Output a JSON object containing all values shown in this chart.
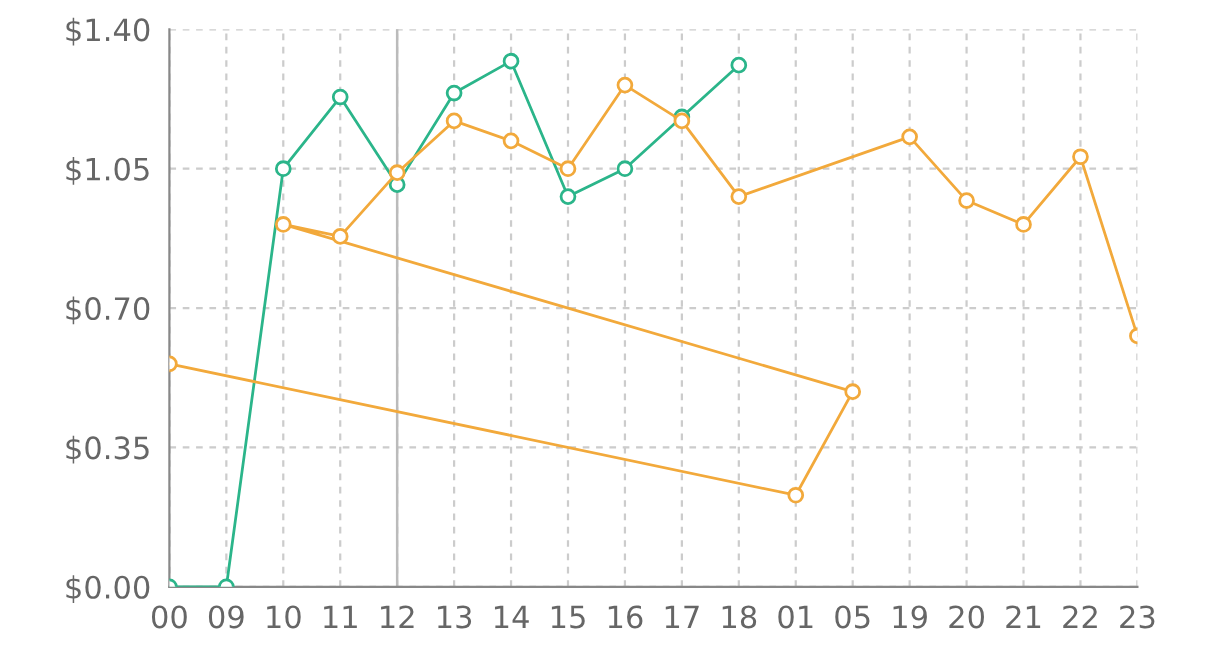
{
  "chart_data": {
    "type": "line",
    "categories": [
      "00",
      "09",
      "10",
      "11",
      "12",
      "13",
      "14",
      "15",
      "16",
      "17",
      "18",
      "01",
      "05",
      "19",
      "20",
      "21",
      "22",
      "23"
    ],
    "series": [
      {
        "color": "#2bb58a",
        "x": [
          "00",
          "09",
          "10",
          "11",
          "12",
          "13",
          "14",
          "15",
          "16",
          "17",
          "18"
        ],
        "values": [
          0,
          0,
          1.05,
          1.23,
          1.01,
          1.24,
          1.32,
          0.98,
          1.05,
          1.18,
          1.31
        ]
      },
      {
        "color": "#f2a93b",
        "x": [
          "00",
          "01",
          "05",
          "10",
          "11",
          "12",
          "13",
          "14",
          "15",
          "16",
          "17",
          "18",
          "19",
          "20",
          "21",
          "22",
          "23"
        ],
        "values": [
          0.56,
          0.23,
          0.49,
          0.91,
          0.88,
          1.04,
          1.17,
          1.12,
          1.05,
          1.26,
          1.17,
          0.98,
          1.13,
          0.97,
          0.91,
          1.08,
          0.63
        ]
      }
    ],
    "ylim": [
      0,
      1.4
    ],
    "yticks": [
      {
        "value": 0,
        "label": "$0.00"
      },
      {
        "value": 0.35,
        "label": "$0.35"
      },
      {
        "value": 0.7,
        "label": "$0.70"
      },
      {
        "value": 1.05,
        "label": "$1.05"
      },
      {
        "value": 1.4,
        "label": "$1.40"
      }
    ],
    "ref_lines": [
      {
        "axis": "x",
        "value": "12",
        "color": "#bbbbbb",
        "line_style": "solid"
      }
    ],
    "grid": true,
    "marker": "circle",
    "line_style": "solid",
    "legend": false
  }
}
